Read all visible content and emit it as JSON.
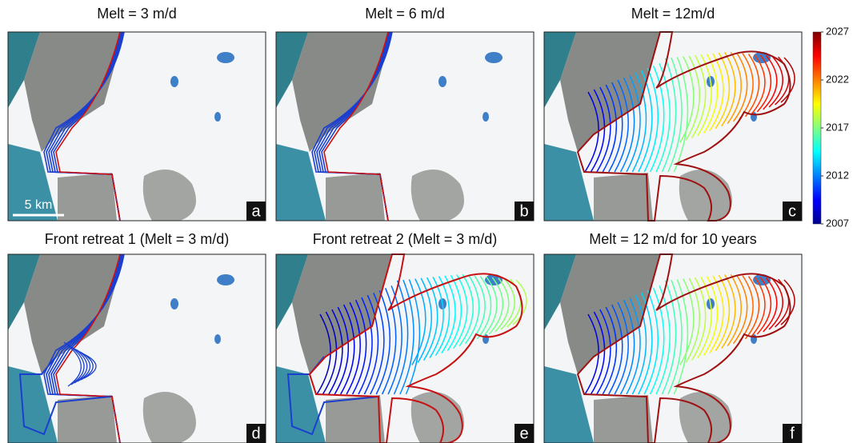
{
  "panels": [
    {
      "title": "Melt = 3 m/d",
      "label": "a"
    },
    {
      "title": "Melt = 6 m/d",
      "label": "b"
    },
    {
      "title": "Melt = 12m/d",
      "label": "c"
    },
    {
      "title": "Front retreat 1 (Melt = 3 m/d)",
      "label": "d"
    },
    {
      "title": "Front retreat 2 (Melt = 3 m/d)",
      "label": "e"
    },
    {
      "title": "Melt = 12 m/d for 10 years",
      "label": "f"
    }
  ],
  "scale_bar": "5 km",
  "colorbar": {
    "lim": [
      2007,
      2027
    ],
    "ticks": [
      2007,
      2012,
      2017,
      2022,
      2027
    ]
  }
}
